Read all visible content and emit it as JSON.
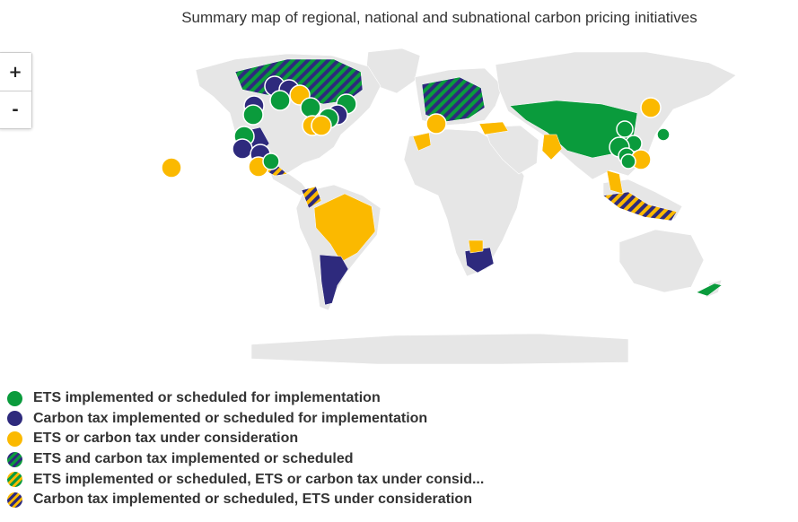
{
  "title": "Summary map of regional, national and subnational carbon pricing initiatives",
  "zoom": {
    "in_label": "+",
    "out_label": "-"
  },
  "colors": {
    "ets": "#0a9b3c",
    "tax": "#2e2a7d",
    "consideration": "#fbb900",
    "land": "#e6e6e6",
    "water": "#ffffff"
  },
  "legend": [
    {
      "label": "ETS implemented or scheduled for implementation",
      "pattern": "ets"
    },
    {
      "label": "Carbon tax implemented or scheduled for implementation",
      "pattern": "tax"
    },
    {
      "label": "ETS or carbon tax under consideration",
      "pattern": "consideration"
    },
    {
      "label": "ETS and carbon tax implemented or scheduled",
      "pattern": "ets-tax"
    },
    {
      "label": "ETS implemented or scheduled, ETS or carbon tax under consid...",
      "pattern": "ets-consideration"
    },
    {
      "label": "Carbon tax implemented or scheduled, ETS under consideration",
      "pattern": "tax-consideration"
    }
  ]
}
